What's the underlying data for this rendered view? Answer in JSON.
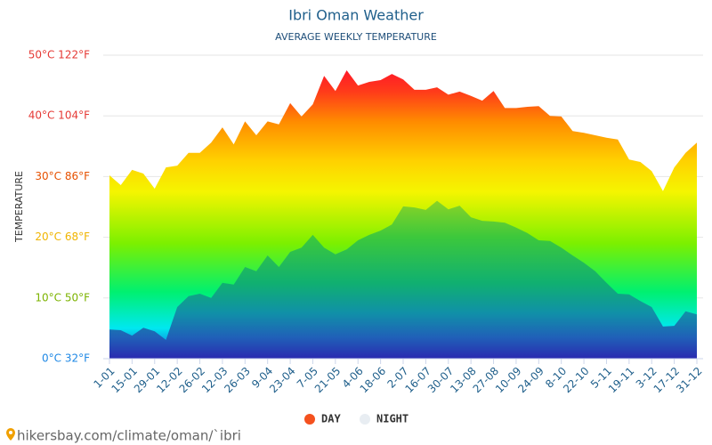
{
  "chart_data": {
    "type": "area",
    "title": "Ibri Oman Weather",
    "subtitle": "AVERAGE WEEKLY TEMPERATURE",
    "y_label": "TEMPERATURE",
    "source": "hikersbay.com/climate/oman/`ibri",
    "categories": [
      "1-01",
      null,
      "15-01",
      null,
      "29-01",
      null,
      "12-02",
      null,
      "26-02",
      null,
      "12-03",
      null,
      "26-03",
      null,
      "9-04",
      null,
      "23-04",
      null,
      "7-05",
      null,
      "21-05",
      null,
      "4-06",
      null,
      "18-06",
      null,
      "2-07",
      null,
      "16-07",
      null,
      "30-07",
      null,
      "13-08",
      null,
      "27-08",
      null,
      "10-09",
      null,
      "24-09",
      null,
      "8-10",
      null,
      "22-10",
      null,
      "5-11",
      null,
      "19-11",
      null,
      "3-12",
      null,
      "17-12",
      null,
      "31-12"
    ],
    "series": [
      {
        "name": "DAY",
        "color": "#f4511e",
        "values": [
          30.2,
          28.6,
          31.1,
          30.5,
          28,
          31.5,
          31.8,
          33.9,
          33.9,
          35.6,
          38.1,
          35.3,
          39.1,
          36.8,
          39.1,
          38.6,
          42.1,
          39.9,
          41.9,
          46.6,
          44.1,
          47.5,
          45,
          45.6,
          45.9,
          46.9,
          46,
          44.3,
          44.3,
          44.7,
          43.5,
          44,
          43.3,
          42.5,
          44.1,
          41.3,
          41.3,
          41.5,
          41.6,
          40,
          39.9,
          37.5,
          37.2,
          36.8,
          36.4,
          36.1,
          32.8,
          32.4,
          30.9,
          27.6,
          31.5,
          33.9,
          35.6
        ]
      },
      {
        "name": "NIGHT",
        "color": "#e8edf2",
        "values": [
          4.8,
          4.7,
          3.8,
          5.1,
          4.5,
          3.1,
          8.5,
          10.3,
          10.7,
          10,
          12.5,
          12.2,
          15.1,
          14.4,
          17,
          15.1,
          17.6,
          18.3,
          20.4,
          18.3,
          17.2,
          18,
          19.5,
          20.4,
          21.1,
          22.1,
          25.1,
          24.9,
          24.5,
          26,
          24.6,
          25.2,
          23.3,
          22.7,
          22.6,
          22.4,
          21.6,
          20.7,
          19.5,
          19.4,
          18.3,
          17,
          15.8,
          14.4,
          12.5,
          10.7,
          10.6,
          9.5,
          8.5,
          5.3,
          5.4,
          7.8,
          7.3
        ]
      }
    ],
    "ylim": [
      0,
      50
    ],
    "yticks": [
      {
        "value": 0,
        "label": "0°C 32°F"
      },
      {
        "value": 10,
        "label": "10°C 50°F"
      },
      {
        "value": 20,
        "label": "20°C 68°F"
      },
      {
        "value": 30,
        "label": "30°C 86°F"
      },
      {
        "value": 40,
        "label": "40°C 104°F"
      },
      {
        "value": 50,
        "label": "50°C 122°F"
      }
    ],
    "ytick_colors": [
      "#1e88e5",
      "#7cb300",
      "#f0b400",
      "#e65100",
      "#e53935",
      "#e53935"
    ],
    "grid": true
  }
}
